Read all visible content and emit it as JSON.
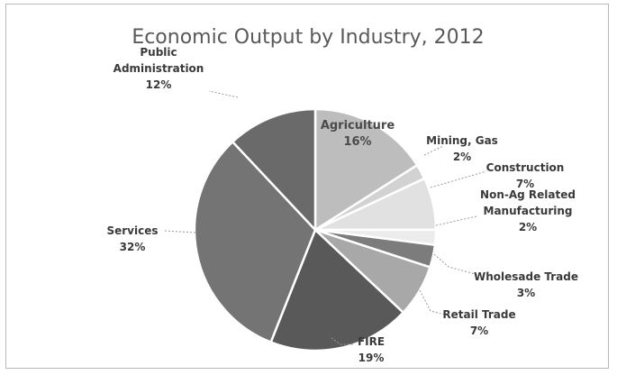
{
  "chart_data": {
    "type": "pie",
    "title": "Economic Output by Industry, 2012",
    "slices": [
      {
        "name": "Agriculture",
        "label": [
          "Agriculture"
        ],
        "percent_label": "16%",
        "value": 16,
        "color": "#bdbdbd"
      },
      {
        "name": "Mining, Gas",
        "label": [
          "Mining, Gas"
        ],
        "percent_label": "2%",
        "value": 2,
        "color": "#d2d2d2"
      },
      {
        "name": "Construction",
        "label": [
          "Construction"
        ],
        "percent_label": "7%",
        "value": 7,
        "color": "#e1e1e1"
      },
      {
        "name": "Non-Ag Related Manufacturing",
        "label": [
          "Non-Ag Related",
          "Manufacturing"
        ],
        "percent_label": "2%",
        "value": 2,
        "color": "#ececec"
      },
      {
        "name": "Wholesade Trade",
        "label": [
          "Wholesade Trade"
        ],
        "percent_label": "3%",
        "value": 3,
        "color": "#7c7c7c"
      },
      {
        "name": "Retail Trade",
        "label": [
          "Retail Trade"
        ],
        "percent_label": "7%",
        "value": 7,
        "color": "#a8a8a8"
      },
      {
        "name": "FIRE",
        "label": [
          "FIRE"
        ],
        "percent_label": "19%",
        "value": 19,
        "color": "#595959"
      },
      {
        "name": "Services",
        "label": [
          "Services"
        ],
        "percent_label": "32%",
        "value": 32,
        "color": "#747474"
      },
      {
        "name": "Public Administration",
        "label": [
          "Public",
          "Administration"
        ],
        "percent_label": "12%",
        "value": 12,
        "color": "#6a6a6a"
      }
    ],
    "start_angle_deg": 0,
    "direction": "clockwise",
    "legend": "none",
    "data_labels": "outside with leader lines"
  }
}
